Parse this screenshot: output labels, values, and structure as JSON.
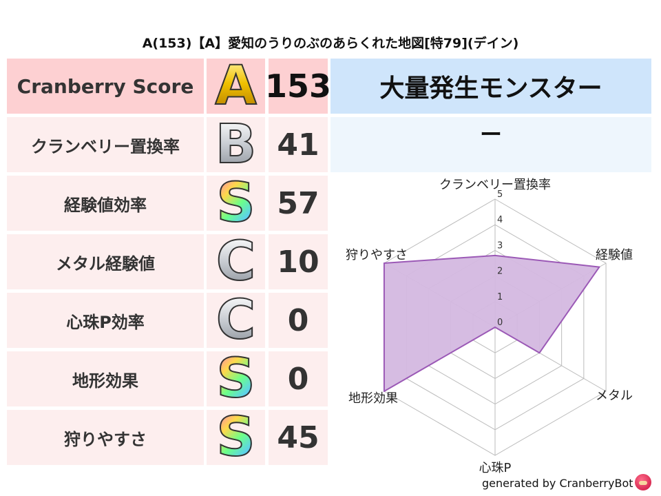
{
  "title": "A(153)【A】愛知のうりのぶのあらくれた地図[特79](デイン)",
  "rows": [
    {
      "label": "Cranberry Score",
      "grade": "A",
      "value": "153",
      "bg": "#fdd0d2"
    },
    {
      "label": "クランベリー置換率",
      "grade": "B",
      "value": "41",
      "bg": "#fdeeee"
    },
    {
      "label": "経験値効率",
      "grade": "S",
      "value": "57",
      "bg": "#fdeeee"
    },
    {
      "label": "メタル経験値",
      "grade": "C",
      "value": "10",
      "bg": "#fdeeee"
    },
    {
      "label": "心珠P効率",
      "grade": "C",
      "value": "0",
      "bg": "#fdeeee"
    },
    {
      "label": "地形効果",
      "grade": "S",
      "value": "0",
      "bg": "#fdeeee"
    },
    {
      "label": "狩りやすさ",
      "grade": "S",
      "value": "45",
      "bg": "#fdeeee"
    }
  ],
  "monster": {
    "header": "大量発生モンスター",
    "value": "ー"
  },
  "chart_data": {
    "type": "radar",
    "axes": [
      "クランベリー置換率",
      "経験値",
      "メタル",
      "心珠P",
      "地形効果",
      "狩りやすさ"
    ],
    "values": [
      2.8,
      4.7,
      2,
      0,
      5,
      5
    ],
    "rlim": [
      0,
      5
    ],
    "ticks": [
      "0",
      "1",
      "2",
      "3",
      "4",
      "5"
    ],
    "color": "#9b59b6",
    "fill": "#d4b8e0"
  },
  "footer": "generated by CranberryBot"
}
